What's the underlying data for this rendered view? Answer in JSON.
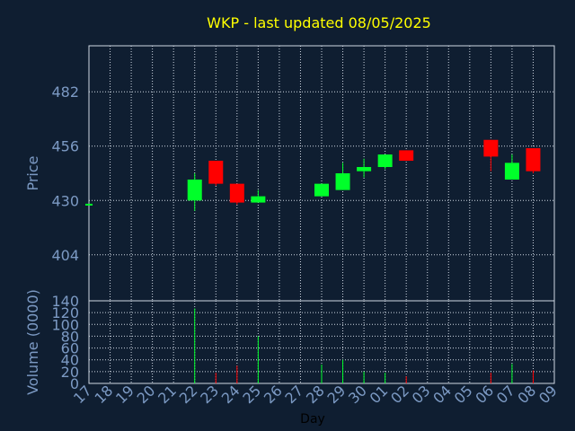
{
  "chart_data": [
    {
      "type": "candlestick",
      "title": "WKP - last updated 08/05/2025",
      "ylabel": "Price",
      "ylim": [
        382,
        504
      ],
      "yticks": [
        404,
        430,
        456,
        482
      ],
      "days": [
        "17",
        "18",
        "19",
        "20",
        "21",
        "22",
        "23",
        "24",
        "25",
        "26",
        "27",
        "28",
        "29",
        "30",
        "01",
        "02",
        "03",
        "04",
        "05",
        "06",
        "07",
        "08",
        "09"
      ],
      "candles": [
        {
          "day": "17",
          "open": 428,
          "close": 428,
          "high": 428,
          "low": 428
        },
        {
          "day": "22",
          "open": 430,
          "close": 440,
          "high": 443,
          "low": 425
        },
        {
          "day": "23",
          "open": 449,
          "close": 438,
          "high": 449,
          "low": 437
        },
        {
          "day": "24",
          "open": 438,
          "close": 429,
          "high": 438,
          "low": 428
        },
        {
          "day": "25",
          "open": 429,
          "close": 432,
          "high": 435,
          "low": 429
        },
        {
          "day": "28",
          "open": 432,
          "close": 438,
          "high": 438,
          "low": 432
        },
        {
          "day": "29",
          "open": 435,
          "close": 443,
          "high": 448,
          "low": 435
        },
        {
          "day": "30",
          "open": 444,
          "close": 446,
          "high": 450,
          "low": 441
        },
        {
          "day": "01",
          "open": 446,
          "close": 452,
          "high": 452,
          "low": 445
        },
        {
          "day": "02",
          "open": 454,
          "close": 449,
          "high": 454,
          "low": 449
        },
        {
          "day": "06",
          "open": 459,
          "close": 451,
          "high": 459,
          "low": 444
        },
        {
          "day": "07",
          "open": 440,
          "close": 448,
          "high": 452,
          "low": 440
        },
        {
          "day": "08",
          "open": 455,
          "close": 444,
          "high": 455,
          "low": 443
        }
      ]
    },
    {
      "type": "bar",
      "ylabel": "Volume (0000)",
      "xlabel": "Day",
      "ylim": [
        0,
        140
      ],
      "yticks": [
        0,
        20,
        40,
        60,
        80,
        100,
        120,
        140
      ],
      "categories": [
        "17",
        "18",
        "19",
        "20",
        "21",
        "22",
        "23",
        "24",
        "25",
        "26",
        "27",
        "28",
        "29",
        "30",
        "01",
        "02",
        "03",
        "04",
        "05",
        "06",
        "07",
        "08",
        "09"
      ],
      "volumes": [
        {
          "day": "22",
          "value": 127,
          "dir": "up"
        },
        {
          "day": "23",
          "value": 18,
          "dir": "down"
        },
        {
          "day": "24",
          "value": 30,
          "dir": "down"
        },
        {
          "day": "25",
          "value": 80,
          "dir": "up"
        },
        {
          "day": "28",
          "value": 32,
          "dir": "up"
        },
        {
          "day": "29",
          "value": 40,
          "dir": "up"
        },
        {
          "day": "30",
          "value": 20,
          "dir": "up"
        },
        {
          "day": "01",
          "value": 18,
          "dir": "up"
        },
        {
          "day": "02",
          "value": 12,
          "dir": "down"
        },
        {
          "day": "06",
          "value": 18,
          "dir": "down"
        },
        {
          "day": "07",
          "value": 33,
          "dir": "up"
        },
        {
          "day": "08",
          "value": 22,
          "dir": "down"
        }
      ]
    }
  ],
  "colors": {
    "background": "#0f1e31",
    "title": "#ffff00",
    "axis_text": "#7c9ac4",
    "grid": "#cfd8e3",
    "up": "#00ff2a",
    "down": "#ff0000"
  }
}
